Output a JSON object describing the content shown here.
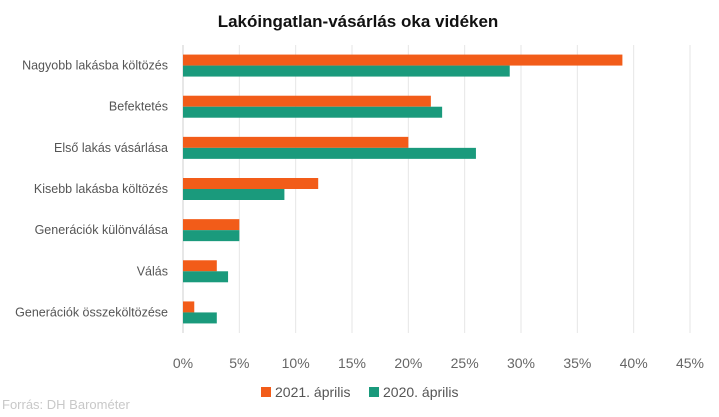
{
  "chart_data": {
    "type": "bar",
    "orientation": "horizontal",
    "title": "Lakóingatlan-vásárlás oka vidéken",
    "categories": [
      "Nagyobb lakásba költözés",
      "Befektetés",
      "Első lakás vásárlása",
      "Kisebb lakásba költözés",
      "Generációk különválása",
      "Válás",
      "Generációk összeköltözése"
    ],
    "series": [
      {
        "name": "2021. április",
        "color": "#f25c19",
        "values": [
          39,
          22,
          20,
          12,
          5,
          3,
          1
        ]
      },
      {
        "name": "2020. április",
        "color": "#1a9a7c",
        "values": [
          29,
          23,
          26,
          9,
          5,
          4,
          3
        ]
      }
    ],
    "xlim": [
      0,
      45
    ],
    "xticks": [
      "0%",
      "5%",
      "10%",
      "15%",
      "20%",
      "25%",
      "30%",
      "35%",
      "40%",
      "45%"
    ],
    "grid": "vertical",
    "legend_position": "bottom"
  },
  "source_text": "Forrás: DH Barométer"
}
